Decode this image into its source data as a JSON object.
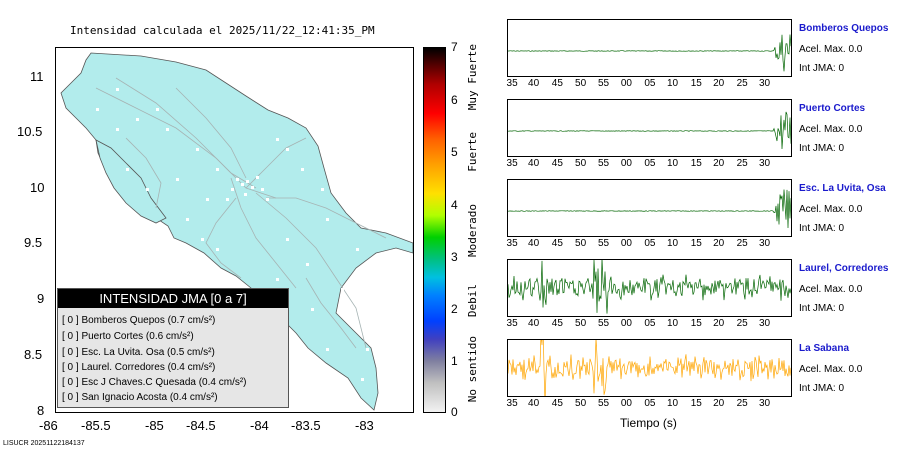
{
  "map": {
    "title": "Intensidad calculada el 2025/11/22_12:41:35_PM",
    "y_ticks": [
      "11",
      "10.5",
      "10",
      "9.5",
      "9",
      "8.5",
      "8"
    ],
    "x_ticks": [
      "-86",
      "-85.5",
      "-85",
      "-84.5",
      "-84",
      "-83.5",
      "-83"
    ],
    "land_color": "#b2ecec",
    "legend": {
      "title": "INTENSIDAD JMA [0 a 7]",
      "rows": [
        "[ 0 ]  Bomberos Quepos (0.7 cm/s²)",
        "[ 0 ]  Puerto Cortes (0.6 cm/s²)",
        "[ 0 ]  Esc. La Uvita. Osa (0.5 cm/s²)",
        "[ 0 ]  Laurel. Corredores (0.4 cm/s²)",
        "[ 0 ]  Esc J Chaves.C Quesada (0.4 cm/s²)",
        "[ 0 ]  San Ignacio Acosta (0.4 cm/s²)"
      ]
    },
    "stamp": "LISUCR 20251122184137"
  },
  "colorbar": {
    "ticks": [
      "7",
      "6",
      "5",
      "4",
      "3",
      "2",
      "1",
      "0"
    ],
    "labels": [
      "Muy Fuerte",
      "Fuerte",
      "Moderado",
      "Debil",
      "No sentido"
    ]
  },
  "chart_data": {
    "type": "line",
    "xlabel": "Tiempo (s)",
    "x_ticks": [
      "35",
      "40",
      "45",
      "50",
      "55",
      "00",
      "05",
      "10",
      "15",
      "20",
      "25",
      "30"
    ],
    "x_ticks_short": [
      "35",
      "40",
      "45",
      "50",
      "55",
      "00",
      "05",
      "10",
      "15",
      "20",
      "25",
      "30"
    ],
    "x_ticks_alt": [
      "35",
      "40",
      "45",
      "50",
      "55",
      "00",
      "05",
      "10",
      "15",
      "20",
      "25",
      "30"
    ],
    "series": [
      {
        "name": "Bomberos Quepos",
        "color": "#006400",
        "accel_label": "Acel. Max. 0.0",
        "jma_label": "Int JMA: 0",
        "pattern": "late-burst"
      },
      {
        "name": "Puerto Cortes",
        "color": "#006400",
        "accel_label": "Acel. Max. 0.0",
        "jma_label": "Int JMA: 0",
        "pattern": "late-burst"
      },
      {
        "name": "Esc. La Uvita, Osa",
        "color": "#006400",
        "accel_label": "Acel. Max. 0.0",
        "jma_label": "Int JMA: 0",
        "pattern": "late-burst"
      },
      {
        "name": "Laurel, Corredores",
        "color": "#006400",
        "accel_label": "Acel. Max. 0.0",
        "jma_label": "Int JMA: 0",
        "pattern": "noisy"
      },
      {
        "name": "La Sabana",
        "color": "#ffa500",
        "accel_label": "Acel. Max. 0.0",
        "jma_label": "Int JMA: 0",
        "pattern": "noisy"
      }
    ]
  }
}
